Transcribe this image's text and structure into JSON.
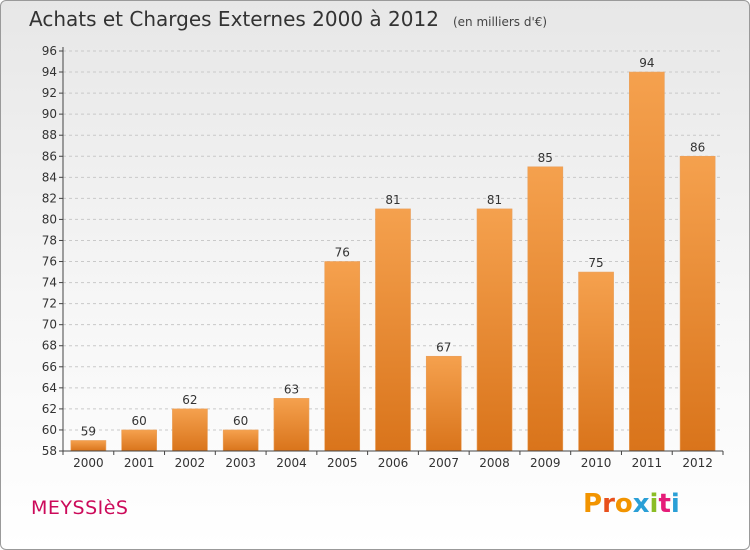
{
  "header": {
    "title": "Achats et Charges Externes 2000 à 2012",
    "unit": "(en milliers d'€)"
  },
  "footer": {
    "commune": "MEYSSIèS",
    "logo": {
      "letters": [
        "P",
        "r",
        "o",
        "x",
        "i",
        "t",
        "i"
      ],
      "colors": [
        "#f29400",
        "#e8501c",
        "#f29400",
        "#2a9fd6",
        "#8bbd25",
        "#e51c78",
        "#2a9fd6"
      ]
    }
  },
  "colors": {
    "bar_light": "#f5a14e",
    "bar_dark": "#d9741b",
    "grid": "#c9c9c9",
    "axis": "#444444"
  },
  "chart_data": {
    "type": "bar",
    "title": "Achats et Charges Externes 2000 à 2012",
    "subtitle": "(en milliers d'€)",
    "xlabel": "",
    "ylabel": "",
    "categories": [
      "2000",
      "2001",
      "2002",
      "2003",
      "2004",
      "2005",
      "2006",
      "2007",
      "2008",
      "2009",
      "2010",
      "2011",
      "2012"
    ],
    "values": [
      59,
      60,
      62,
      60,
      63,
      76,
      81,
      67,
      81,
      85,
      75,
      94,
      86
    ],
    "ylim": [
      58,
      96
    ],
    "ytick_step": 2,
    "grid": true
  }
}
